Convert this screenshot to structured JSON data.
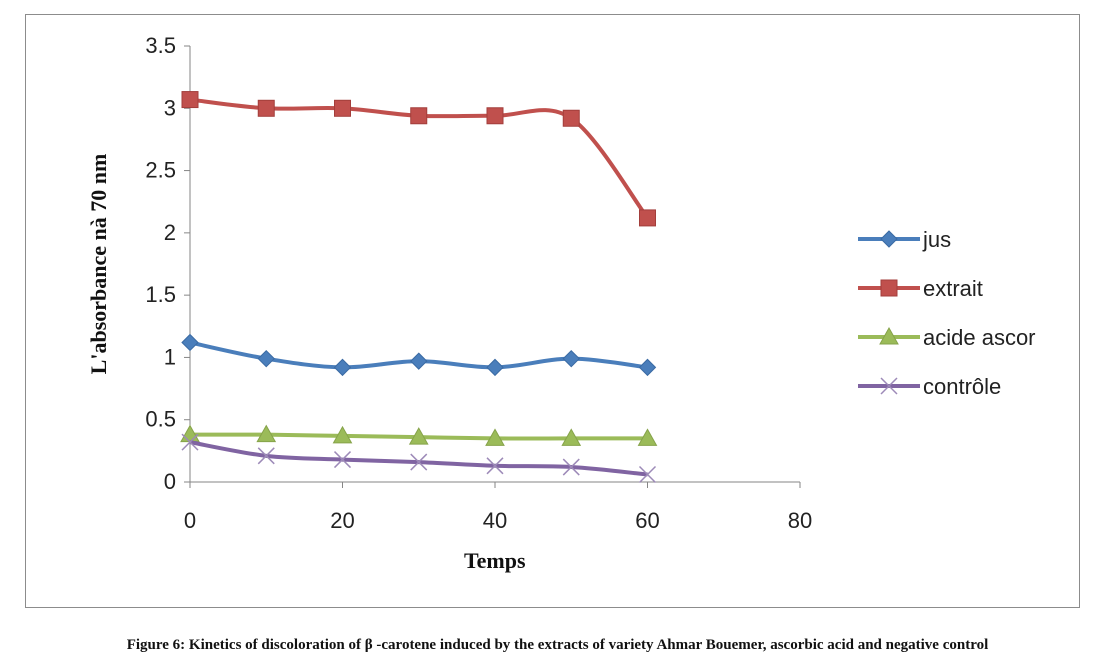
{
  "chart_data": {
    "type": "line",
    "xlabel": "Temps",
    "ylabel": "L'absorbance nà 70 nm",
    "xlim": [
      0,
      80
    ],
    "ylim": [
      0,
      3.5
    ],
    "x_ticks": [
      0,
      20,
      40,
      60,
      80
    ],
    "y_ticks": [
      0,
      0.5,
      1,
      1.5,
      2,
      2.5,
      3,
      3.5
    ],
    "x_tick_labels": [
      "0",
      "20",
      "40",
      "60",
      "80"
    ],
    "y_tick_labels": [
      "0",
      "0.5",
      "1",
      "1.5",
      "2",
      "2.5",
      "3",
      "3.5"
    ],
    "grid": false,
    "legend_position": "right",
    "x": [
      0,
      10,
      20,
      30,
      40,
      50,
      60
    ],
    "series": [
      {
        "name": "jus",
        "values": [
          1.12,
          0.99,
          0.92,
          0.97,
          0.92,
          0.99,
          0.92
        ],
        "color": "#4a7ebb",
        "marker": "diamond"
      },
      {
        "name": "extrait",
        "values": [
          3.07,
          3.0,
          3.0,
          2.94,
          2.94,
          2.92,
          2.12
        ],
        "color": "#c0504d",
        "marker": "square"
      },
      {
        "name": "acide ascor",
        "values": [
          0.38,
          0.38,
          0.37,
          0.36,
          0.35,
          0.35,
          0.35
        ],
        "color": "#9bbb59",
        "marker": "triangle"
      },
      {
        "name": "contrôle",
        "values": [
          0.32,
          0.21,
          0.18,
          0.16,
          0.13,
          0.12,
          0.06
        ],
        "color": "#8064a2",
        "marker": "x"
      }
    ]
  },
  "caption": "Figure 6: Kinetics of discoloration of β -carotene induced by the extracts of variety Ahmar Bouemer, ascorbic acid and negative control"
}
